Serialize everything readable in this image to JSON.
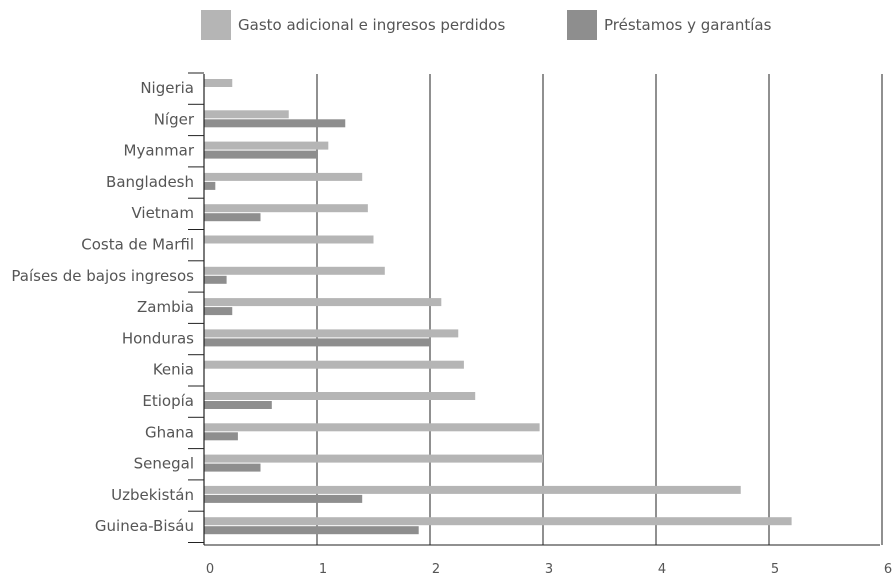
{
  "chart_data": {
    "type": "bar",
    "orientation": "horizontal",
    "categories": [
      "Nigeria",
      "Níger",
      "Myanmar",
      "Bangladesh",
      "Vietnam",
      "Costa de Marfil",
      "Países de bajos ingresos",
      "Zambia",
      "Honduras",
      "Kenia",
      "Etiopía",
      "Ghana",
      "Senegal",
      "Uzbekistán",
      "Guinea-Bisáu"
    ],
    "series": [
      {
        "name": "Gasto adicional e ingresos perdidos",
        "color": "#b5b5b5",
        "values": [
          0.25,
          0.75,
          1.1,
          1.4,
          1.45,
          1.5,
          1.6,
          2.1,
          2.25,
          2.3,
          2.4,
          2.97,
          3.0,
          4.75,
          5.2
        ]
      },
      {
        "name": "Préstamos y garantías",
        "color": "#8e8e8e",
        "values": [
          0,
          1.25,
          1.0,
          0.1,
          0.5,
          0,
          0.2,
          0.25,
          2.0,
          0,
          0.6,
          0.3,
          0.5,
          1.4,
          1.9
        ]
      }
    ],
    "x_ticks": [
      "0",
      "1",
      "2",
      "3",
      "4",
      "5",
      "6"
    ],
    "xlim": [
      0,
      6
    ],
    "grid": "vertical",
    "legend_position": "top"
  }
}
